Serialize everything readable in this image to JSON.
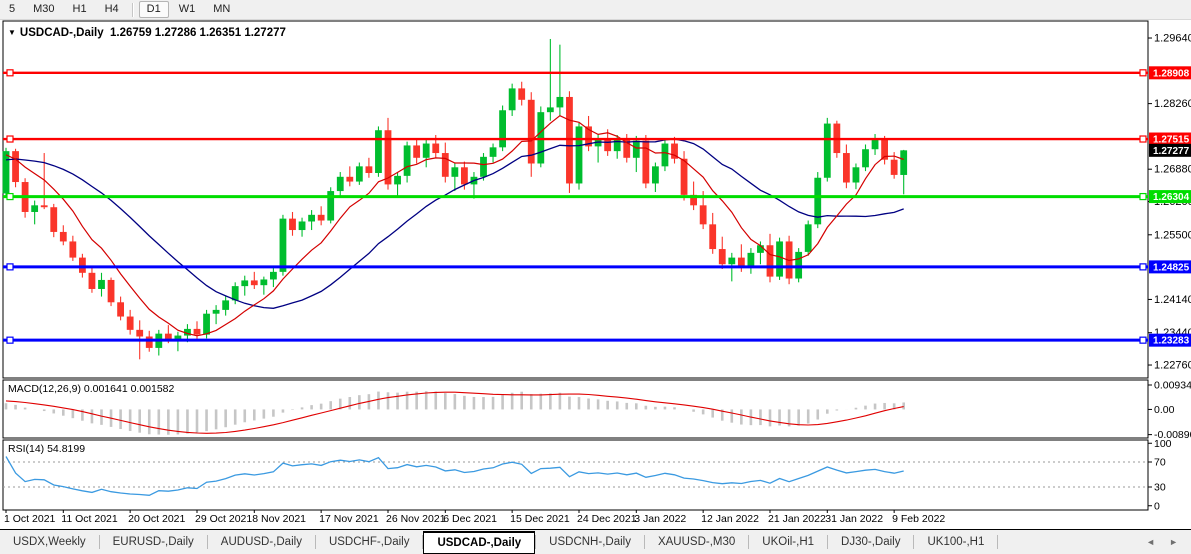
{
  "toolbar": {
    "timeframes": [
      "5",
      "M30",
      "H1",
      "H4",
      "D1",
      "W1",
      "MN"
    ],
    "active_timeframe": "D1"
  },
  "chart": {
    "dropdown_icon": "▼",
    "symbol": "USDCAD-,Daily",
    "ohlc_text": "1.26759 1.27286 1.26351 1.27277",
    "current_price_label": "1.27277"
  },
  "chart_data": [
    {
      "type": "candlestick",
      "title": "USDCAD-,Daily",
      "ohlc_display": [
        1.26759,
        1.27286,
        1.26351,
        1.27277
      ],
      "ylim": [
        1.22487,
        1.29998
      ],
      "y_ticks": [
        {
          "label": "1.29640",
          "value": 1.2964
        },
        {
          "label": "1.28260",
          "value": 1.2826
        },
        {
          "label": "1.26880",
          "value": 1.2688
        },
        {
          "label": "1.26200",
          "value": 1.262
        },
        {
          "label": "1.25500",
          "value": 1.255
        },
        {
          "label": "1.24140",
          "value": 1.2414
        },
        {
          "label": "1.23440",
          "value": 1.2344
        },
        {
          "label": "1.22760",
          "value": 1.2276
        }
      ],
      "x_labels": [
        "1 Oct 2021",
        "11 Oct 2021",
        "20 Oct 2021",
        "29 Oct 2021",
        "8 Nov 2021",
        "17 Nov 2021",
        "26 Nov 2021",
        "6 Dec 2021",
        "15 Dec 2021",
        "24 Dec 2021",
        "3 Jan 2022",
        "12 Jan 2022",
        "21 Jan 2022",
        "31 Jan 2022",
        "9 Feb 2022"
      ],
      "x_label_indices": [
        0,
        6,
        13,
        20,
        26,
        33,
        40,
        46,
        53,
        60,
        66,
        73,
        80,
        86,
        93
      ],
      "hlines": [
        {
          "label": "1.28908",
          "value": 1.28908,
          "color": "#fe0000",
          "width": 2.4
        },
        {
          "label": "1.27515",
          "value": 1.27515,
          "color": "#fe0000",
          "width": 2.4
        },
        {
          "label": "1.26304",
          "value": 1.26304,
          "color": "#00dd00",
          "width": 3
        },
        {
          "label": "1.24825",
          "value": 1.24825,
          "color": "#0000fe",
          "width": 3
        },
        {
          "label": "1.23283",
          "value": 1.23283,
          "color": "#0000fe",
          "width": 3
        }
      ],
      "current_price": {
        "label": "1.27277",
        "value": 1.27277,
        "badge_color": "#000000"
      },
      "ma_periods": [
        8,
        21
      ],
      "ma_seed": [
        1.26,
        1.262,
        1.2645,
        1.266,
        1.2675,
        1.269,
        1.27,
        1.2712,
        1.2722,
        1.273,
        1.2736,
        1.274,
        1.2742,
        1.274,
        1.2736,
        1.273,
        1.2722,
        1.2716,
        1.271,
        1.2705,
        1.2702
      ],
      "candles": [
        [
          1.2637,
          1.2733,
          1.2629,
          1.2726
        ],
        [
          1.2726,
          1.2731,
          1.265,
          1.2661
        ],
        [
          1.2661,
          1.2669,
          1.2586,
          1.2598
        ],
        [
          1.2598,
          1.2622,
          1.2572,
          1.2612
        ],
        [
          1.2612,
          1.2722,
          1.2604,
          1.2608
        ],
        [
          1.2608,
          1.2615,
          1.2545,
          1.2556
        ],
        [
          1.2556,
          1.257,
          1.2528,
          1.2536
        ],
        [
          1.2536,
          1.2548,
          1.2495,
          1.2502
        ],
        [
          1.2502,
          1.251,
          1.246,
          1.247
        ],
        [
          1.247,
          1.2483,
          1.2428,
          1.2436
        ],
        [
          1.2436,
          1.247,
          1.242,
          1.2455
        ],
        [
          1.2455,
          1.246,
          1.24,
          1.2408
        ],
        [
          1.2408,
          1.242,
          1.237,
          1.2378
        ],
        [
          1.2378,
          1.2392,
          1.234,
          1.235
        ],
        [
          1.235,
          1.237,
          1.2288,
          1.2336
        ],
        [
          1.2336,
          1.2348,
          1.2304,
          1.2312
        ],
        [
          1.2312,
          1.235,
          1.2296,
          1.2342
        ],
        [
          1.2342,
          1.236,
          1.2322,
          1.233
        ],
        [
          1.233,
          1.2346,
          1.2305,
          1.2338
        ],
        [
          1.2338,
          1.2362,
          1.2324,
          1.2352
        ],
        [
          1.2352,
          1.2368,
          1.233,
          1.234
        ],
        [
          1.234,
          1.2392,
          1.2332,
          1.2384
        ],
        [
          1.2384,
          1.2402,
          1.2362,
          1.2392
        ],
        [
          1.2392,
          1.2422,
          1.238,
          1.2412
        ],
        [
          1.2412,
          1.245,
          1.2404,
          1.2442
        ],
        [
          1.2442,
          1.2464,
          1.2422,
          1.2454
        ],
        [
          1.2454,
          1.2472,
          1.2436,
          1.2444
        ],
        [
          1.2444,
          1.2462,
          1.2424,
          1.2456
        ],
        [
          1.2456,
          1.248,
          1.244,
          1.2472
        ],
        [
          1.2472,
          1.2592,
          1.2464,
          1.2584
        ],
        [
          1.2584,
          1.2598,
          1.2548,
          1.256
        ],
        [
          1.256,
          1.2586,
          1.2546,
          1.2578
        ],
        [
          1.2578,
          1.2602,
          1.256,
          1.2592
        ],
        [
          1.2592,
          1.261,
          1.257,
          1.258
        ],
        [
          1.258,
          1.265,
          1.2574,
          1.2642
        ],
        [
          1.2642,
          1.2682,
          1.2632,
          1.2672
        ],
        [
          1.2672,
          1.2694,
          1.2652,
          1.2662
        ],
        [
          1.2662,
          1.2702,
          1.2655,
          1.2694
        ],
        [
          1.2694,
          1.2712,
          1.267,
          1.268
        ],
        [
          1.268,
          1.2778,
          1.2672,
          1.277
        ],
        [
          1.277,
          1.2796,
          1.2645,
          1.2656
        ],
        [
          1.2656,
          1.2682,
          1.2628,
          1.2674
        ],
        [
          1.2674,
          1.2746,
          1.266,
          1.2738
        ],
        [
          1.2738,
          1.2752,
          1.27,
          1.2712
        ],
        [
          1.2712,
          1.275,
          1.2692,
          1.2742
        ],
        [
          1.2742,
          1.276,
          1.2712,
          1.2722
        ],
        [
          1.2722,
          1.2744,
          1.266,
          1.2672
        ],
        [
          1.2672,
          1.2702,
          1.2642,
          1.2692
        ],
        [
          1.2692,
          1.2704,
          1.2645,
          1.2656
        ],
        [
          1.2656,
          1.2682,
          1.2626,
          1.2672
        ],
        [
          1.2672,
          1.2722,
          1.2664,
          1.2714
        ],
        [
          1.2714,
          1.2742,
          1.2702,
          1.2734
        ],
        [
          1.2734,
          1.2822,
          1.2726,
          1.2812
        ],
        [
          1.2812,
          1.2868,
          1.28,
          1.2858
        ],
        [
          1.2858,
          1.2872,
          1.2822,
          1.2834
        ],
        [
          1.2834,
          1.285,
          1.2672,
          1.27
        ],
        [
          1.27,
          1.282,
          1.2692,
          1.2808
        ],
        [
          1.2808,
          1.2962,
          1.279,
          1.2818
        ],
        [
          1.2818,
          1.295,
          1.28,
          1.284
        ],
        [
          1.284,
          1.2852,
          1.2638,
          1.2658
        ],
        [
          1.2658,
          1.2786,
          1.2645,
          1.2778
        ],
        [
          1.2778,
          1.28,
          1.2726,
          1.2736
        ],
        [
          1.2736,
          1.2762,
          1.2702,
          1.2752
        ],
        [
          1.2752,
          1.2772,
          1.2716,
          1.2726
        ],
        [
          1.2726,
          1.276,
          1.271,
          1.275
        ],
        [
          1.275,
          1.2762,
          1.2702,
          1.2712
        ],
        [
          1.2712,
          1.2758,
          1.2682,
          1.2748
        ],
        [
          1.2748,
          1.276,
          1.2648,
          1.2658
        ],
        [
          1.2658,
          1.2702,
          1.264,
          1.2694
        ],
        [
          1.2694,
          1.275,
          1.2684,
          1.2742
        ],
        [
          1.2742,
          1.2756,
          1.27,
          1.271
        ],
        [
          1.271,
          1.2726,
          1.2622,
          1.2634
        ],
        [
          1.2634,
          1.2662,
          1.2602,
          1.2612
        ],
        [
          1.2612,
          1.2642,
          1.2562,
          1.2572
        ],
        [
          1.2572,
          1.2596,
          1.251,
          1.252
        ],
        [
          1.252,
          1.2546,
          1.2478,
          1.2488
        ],
        [
          1.2488,
          1.2512,
          1.2452,
          1.2502
        ],
        [
          1.2502,
          1.253,
          1.2472,
          1.2482
        ],
        [
          1.2482,
          1.2522,
          1.2468,
          1.2512
        ],
        [
          1.2512,
          1.2536,
          1.2488,
          1.2528
        ],
        [
          1.2528,
          1.2552,
          1.245,
          1.2462
        ],
        [
          1.2462,
          1.2544,
          1.2455,
          1.2536
        ],
        [
          1.2536,
          1.2548,
          1.2446,
          1.2458
        ],
        [
          1.2458,
          1.2522,
          1.245,
          1.2514
        ],
        [
          1.2514,
          1.258,
          1.2506,
          1.2572
        ],
        [
          1.2572,
          1.2682,
          1.2564,
          1.267
        ],
        [
          1.267,
          1.2796,
          1.2662,
          1.2784
        ],
        [
          1.2784,
          1.279,
          1.2712,
          1.2722
        ],
        [
          1.2722,
          1.274,
          1.2648,
          1.266
        ],
        [
          1.266,
          1.27,
          1.2646,
          1.2692
        ],
        [
          1.2692,
          1.274,
          1.2684,
          1.273
        ],
        [
          1.273,
          1.2762,
          1.2718,
          1.2752
        ],
        [
          1.2752,
          1.2758,
          1.2698,
          1.2708
        ],
        [
          1.2708,
          1.2724,
          1.2668,
          1.2676
        ],
        [
          1.26759,
          1.27286,
          1.26351,
          1.27277
        ]
      ],
      "colors": {
        "bull": "#00bd2e",
        "bear": "#fa352a",
        "ma_fast": "#d40000",
        "ma_slow": "#000082"
      }
    },
    {
      "type": "macd_histogram",
      "label": "MACD(12,26,9) 0.001641 0.001582",
      "params": [
        12,
        26,
        9
      ],
      "current_values": [
        0.001641,
        0.001582
      ],
      "ylim": [
        -0.0101,
        0.0104
      ],
      "y_ticks": [
        {
          "label": "0.009345",
          "value": 0.009345
        },
        {
          "label": "0.00",
          "value": 0
        },
        {
          "label": "-0.008905",
          "value": -0.008905
        }
      ],
      "colors": {
        "histogram": "#c6c6c6",
        "signal": "#e00000"
      }
    },
    {
      "type": "line",
      "label": "RSI(14) 54.8199",
      "period": 14,
      "current_value": 54.8199,
      "levels": [
        70,
        30
      ],
      "ylim": [
        0,
        100
      ],
      "y_ticks": [
        {
          "label": "100",
          "value": 100
        },
        {
          "label": "70",
          "value": 70
        },
        {
          "label": "30",
          "value": 30
        },
        {
          "label": "0",
          "value": 0
        }
      ],
      "colors": {
        "line": "#3b9ae1",
        "level": "#9a9a9a"
      }
    }
  ],
  "bottom_tabs": {
    "items": [
      "USDX,Weekly",
      "EURUSD-,Daily",
      "AUDUSD-,Daily",
      "USDCHF-,Daily",
      "USDCAD-,Daily",
      "USDCNH-,Daily",
      "XAUUSD-,M30",
      "UKOil-,H1",
      "DJ30-,Daily",
      "UK100-,H1"
    ],
    "active": "USDCAD-,Daily",
    "scroll_left_icon": "◄",
    "scroll_right_icon": "►"
  }
}
